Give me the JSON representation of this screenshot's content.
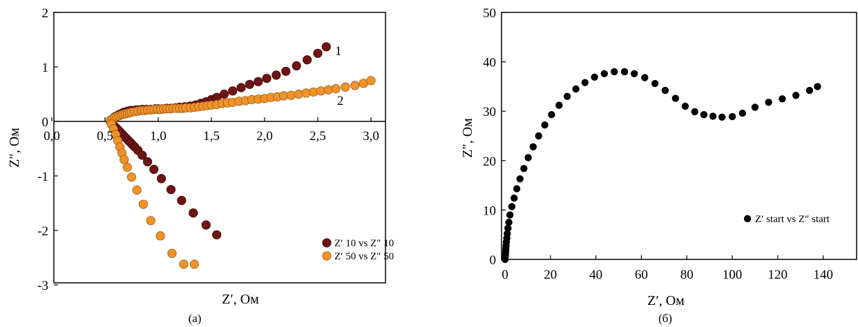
{
  "chart_data": [
    {
      "type": "scatter",
      "caption": "(а)",
      "xlabel": "Z′, Ом",
      "ylabel": "Z″, Ом",
      "xlim": [
        0.0,
        3.2
      ],
      "ylim": [
        -3,
        2
      ],
      "xticks": [
        "0,0",
        "0,5",
        "1,0",
        "1,5",
        "2,0",
        "2,5",
        "3,0"
      ],
      "yticks": [
        "-3",
        "-2",
        "-1",
        "0",
        "1",
        "2"
      ],
      "legend_position": "bottom-right",
      "colors": {
        "series1": "#6e1414",
        "series2": "#f0932b"
      },
      "curve_labels": [
        "1",
        "2"
      ],
      "series": [
        {
          "name": "Z′ 10 vs Z″ 10",
          "label": "1",
          "x": [
            0.55,
            0.56,
            0.57,
            0.58,
            0.59,
            0.6,
            0.61,
            0.62,
            0.63,
            0.64,
            0.65,
            0.66,
            0.67,
            0.68,
            0.7,
            0.72,
            0.74,
            0.76,
            0.79,
            0.82,
            0.85,
            0.89,
            0.93,
            0.97,
            1.0,
            1.04,
            1.08,
            1.12,
            1.16,
            1.2,
            1.25,
            1.3,
            1.35,
            1.4,
            1.45,
            1.5,
            1.55,
            1.62,
            1.7,
            1.78,
            1.86,
            1.94,
            2.02,
            2.11,
            2.2,
            2.3,
            2.4,
            2.5,
            2.58,
            0.56,
            0.58,
            0.6,
            0.62,
            0.64,
            0.66,
            0.68,
            0.7,
            0.72,
            0.74,
            0.76,
            0.78,
            0.81,
            0.85,
            0.9,
            0.96,
            1.03,
            1.12,
            1.22,
            1.33,
            1.45,
            1.55
          ],
          "y": [
            0.0,
            0.02,
            0.04,
            0.06,
            0.08,
            0.09,
            0.1,
            0.11,
            0.12,
            0.13,
            0.14,
            0.15,
            0.16,
            0.17,
            0.18,
            0.19,
            0.2,
            0.2,
            0.21,
            0.21,
            0.22,
            0.22,
            0.22,
            0.23,
            0.23,
            0.23,
            0.24,
            0.24,
            0.25,
            0.26,
            0.27,
            0.28,
            0.3,
            0.33,
            0.36,
            0.4,
            0.44,
            0.5,
            0.56,
            0.62,
            0.68,
            0.73,
            0.79,
            0.85,
            0.92,
            1.02,
            1.13,
            1.25,
            1.37,
            -0.03,
            -0.07,
            -0.11,
            -0.15,
            -0.19,
            -0.23,
            -0.27,
            -0.31,
            -0.35,
            -0.39,
            -0.43,
            -0.47,
            -0.53,
            -0.62,
            -0.74,
            -0.88,
            -1.05,
            -1.25,
            -1.45,
            -1.68,
            -1.9,
            -2.08
          ]
        },
        {
          "name": "Z′ 50 vs Z″ 50",
          "label": "2",
          "x": [
            0.55,
            0.57,
            0.59,
            0.61,
            0.63,
            0.65,
            0.67,
            0.69,
            0.71,
            0.73,
            0.75,
            0.78,
            0.81,
            0.84,
            0.87,
            0.9,
            0.93,
            0.96,
            0.99,
            1.02,
            1.05,
            1.08,
            1.11,
            1.14,
            1.17,
            1.2,
            1.23,
            1.26,
            1.3,
            1.34,
            1.38,
            1.42,
            1.46,
            1.5,
            1.55,
            1.6,
            1.65,
            1.7,
            1.76,
            1.82,
            1.88,
            1.94,
            2.0,
            2.06,
            2.12,
            2.18,
            2.25,
            2.32,
            2.39,
            2.46,
            2.53,
            2.6,
            2.67,
            2.76,
            2.85,
            2.93,
            3.0,
            0.56,
            0.58,
            0.6,
            0.62,
            0.64,
            0.66,
            0.68,
            0.71,
            0.75,
            0.8,
            0.86,
            0.93,
            1.02,
            1.13,
            1.24,
            1.34
          ],
          "y": [
            0.02,
            0.05,
            0.07,
            0.09,
            0.1,
            0.12,
            0.13,
            0.14,
            0.15,
            0.16,
            0.17,
            0.18,
            0.19,
            0.2,
            0.2,
            0.21,
            0.21,
            0.22,
            0.22,
            0.22,
            0.23,
            0.23,
            0.23,
            0.24,
            0.24,
            0.24,
            0.24,
            0.25,
            0.25,
            0.26,
            0.27,
            0.28,
            0.29,
            0.3,
            0.31,
            0.33,
            0.34,
            0.35,
            0.37,
            0.38,
            0.4,
            0.41,
            0.42,
            0.44,
            0.45,
            0.47,
            0.48,
            0.5,
            0.52,
            0.54,
            0.56,
            0.58,
            0.6,
            0.63,
            0.66,
            0.7,
            0.75,
            -0.05,
            -0.14,
            -0.24,
            -0.35,
            -0.47,
            -0.58,
            -0.7,
            -0.84,
            -1.02,
            -1.26,
            -1.52,
            -1.82,
            -2.1,
            -2.42,
            -2.62,
            -2.62
          ]
        }
      ]
    },
    {
      "type": "scatter",
      "caption": "(б)",
      "xlabel": "Z′, Ом",
      "ylabel": "Z″, Ом",
      "xlim": [
        0,
        150
      ],
      "ylim": [
        0,
        50
      ],
      "xticks": [
        "0",
        "20",
        "40",
        "60",
        "80",
        "100",
        "120",
        "140"
      ],
      "yticks": [
        "0",
        "10",
        "20",
        "30",
        "40",
        "50"
      ],
      "legend_position": "center-right",
      "colors": {
        "series1": "#000000"
      },
      "series": [
        {
          "name": "Z′ start vs Z″ start",
          "x": [
            0.0,
            0.1,
            0.2,
            0.3,
            0.4,
            0.5,
            0.6,
            0.8,
            1.0,
            1.3,
            1.7,
            2.2,
            3.0,
            4.0,
            5.2,
            6.6,
            8.3,
            10.2,
            12.4,
            14.8,
            17.5,
            20.5,
            23.8,
            27.4,
            31.2,
            35.2,
            39.4,
            43.7,
            48.1,
            52.6,
            56.9,
            61.5,
            66.0,
            70.5,
            75.0,
            79.3,
            83.5,
            87.5,
            91.5,
            95.5,
            100.0,
            104.5,
            110.0,
            116.0,
            122.0,
            128.0,
            134.0,
            137.5
          ],
          "y": [
            0.0,
            0.5,
            1.0,
            1.6,
            2.2,
            2.8,
            3.5,
            4.3,
            5.2,
            6.3,
            7.5,
            9.0,
            10.7,
            12.4,
            14.3,
            16.3,
            18.4,
            20.6,
            22.8,
            25.0,
            27.2,
            29.3,
            31.2,
            33.0,
            34.5,
            35.8,
            36.9,
            37.6,
            38.0,
            38.0,
            37.6,
            36.8,
            35.6,
            34.2,
            32.6,
            31.0,
            29.9,
            29.3,
            29.0,
            28.8,
            28.9,
            29.6,
            30.8,
            31.8,
            32.5,
            33.2,
            34.2,
            35.0
          ]
        }
      ]
    }
  ]
}
